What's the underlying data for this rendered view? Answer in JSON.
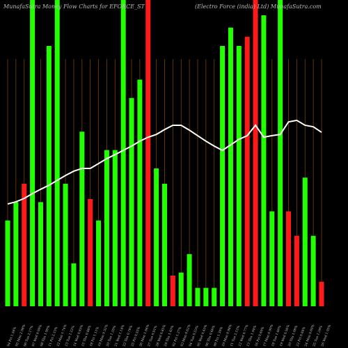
{
  "chart_data": {
    "type": "bar",
    "title": "MunafaSutra  Money Flow  Charts for EFORCE_ST",
    "subtitle": "(Electro  Force  (india) Ltd) MunafaSutra.com",
    "categories": [
      "04 Fri 1.56%",
      "05 Mon 2.08%",
      "06 Tue 2.17%",
      "07 Wed 0.00%",
      "08 Thu 1.90%",
      "11 Fri 2.33%",
      "12 Mon 1.74%",
      "13 Tue 1.22%",
      "14 Wed 0.93%",
      "15 Thu 0.88%",
      "18 Fri 1.11%",
      "19 Mon 0.52%",
      "20 Tue 1.35%",
      "21 Wed 1.14%",
      "22 Thu 0.79%",
      "25 Fri 0.55%",
      "26 Mon 1.66%",
      "27 Tue 0.91%",
      "28 Wed 0.85%",
      "29 Thu 1.43%",
      "02 Fri 1.27%",
      "03 Mon 0.62%",
      "04 Tue 0.53%",
      "05 Wed 0.43%",
      "06 Thu 0.66%",
      "09 Fri 1.30%",
      "10 Mon 0.98%",
      "11 Tue 2.12%",
      "12 Wed 0.77%",
      "13 Thu 1.04%",
      "16 Fri 0.60%",
      "17 Mon 0.90%",
      "18 Tue 1.46%",
      "19 Wed 0.56%",
      "20 Thu 1.08%",
      "23 Fri 0.84%",
      "24 Mon 0.69%",
      "25 Tue 1.39%",
      "26 Wed 1.05%"
    ],
    "values": [
      28,
      34,
      40,
      100,
      34,
      85,
      100,
      40,
      14,
      57,
      35,
      28,
      51,
      51,
      100,
      68,
      74,
      100,
      45,
      40,
      10,
      11,
      17,
      6,
      6,
      6,
      85,
      91,
      85,
      88,
      100,
      95,
      31,
      100,
      31,
      23,
      42,
      23,
      8
    ],
    "bar_colors": [
      "#22ff00",
      "#22ff00",
      "#ff1a1a",
      "#22ff00",
      "#22ff00",
      "#22ff00",
      "#22ff00",
      "#22ff00",
      "#22ff00",
      "#22ff00",
      "#ff1a1a",
      "#22ff00",
      "#22ff00",
      "#22ff00",
      "#22ff00",
      "#22ff00",
      "#22ff00",
      "#ff1a1a",
      "#22ff00",
      "#22ff00",
      "#ff1a1a",
      "#22ff00",
      "#22ff00",
      "#22ff00",
      "#22ff00",
      "#22ff00",
      "#22ff00",
      "#22ff00",
      "#22ff00",
      "#ff1a1a",
      "#ff1a1a",
      "#22ff00",
      "#22ff00",
      "#22ff00",
      "#ff1a1a",
      "#ff1a1a",
      "#22ff00",
      "#22ff00",
      "#ff1a1a"
    ],
    "line": {
      "color": "#ffffff",
      "values": [
        33.4,
        34.1,
        35.2,
        36.8,
        38.2,
        39.5,
        41.1,
        42.7,
        44.1,
        45,
        45,
        46.6,
        48.2,
        49.5,
        50.9,
        52.3,
        53.9,
        55.2,
        56.1,
        57.7,
        59.1,
        59.1,
        57.5,
        55.7,
        53.9,
        52.3,
        50.9,
        52.7,
        54.5,
        55.7,
        59.1,
        55.2,
        55.7,
        56.1,
        60.2,
        60.7,
        59.1,
        58.6,
        56.8
      ]
    },
    "grid_color": "#7a4200",
    "ylim": [
      0,
      100
    ]
  }
}
